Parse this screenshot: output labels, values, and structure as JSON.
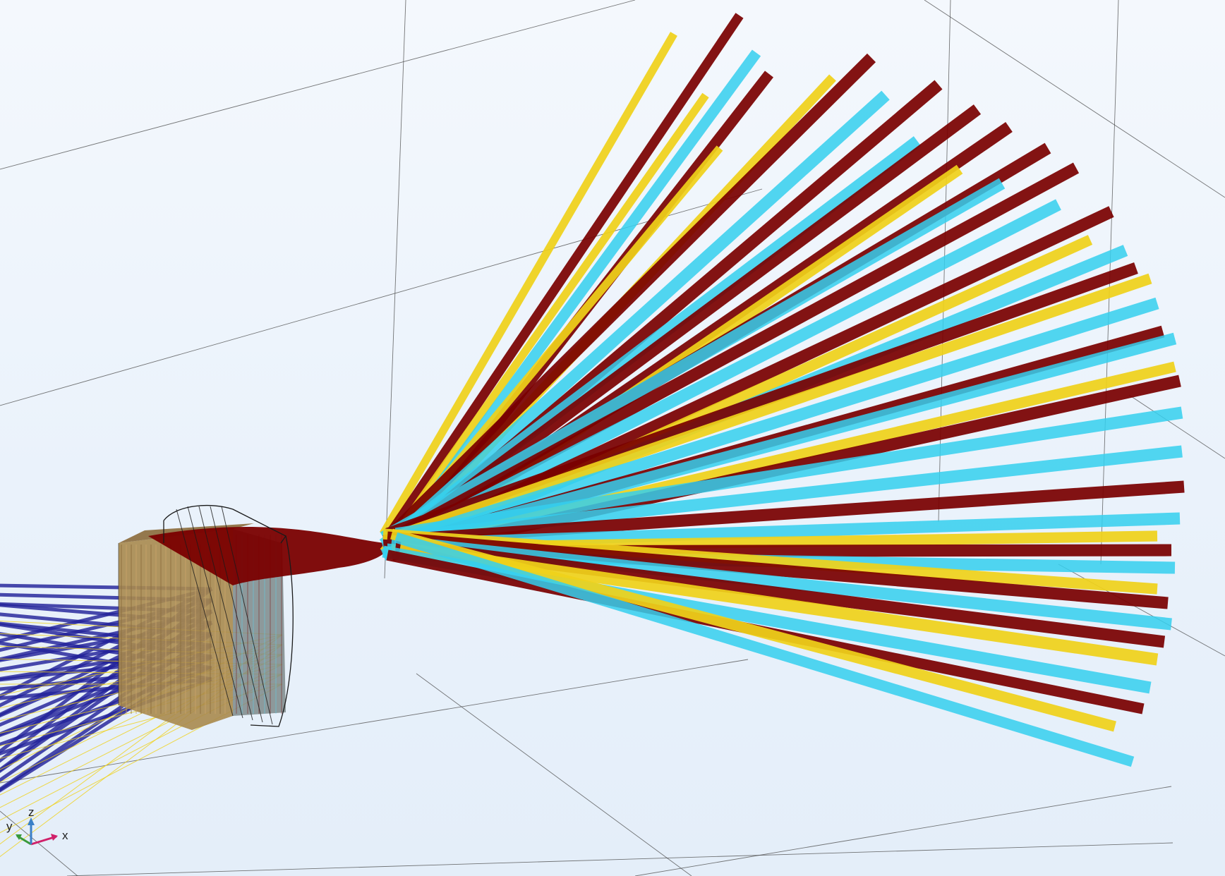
{
  "view": {
    "background_top": "#f4f8fd",
    "background_bottom": "#e4eef9",
    "grid_color": "#4a4a4a"
  },
  "axis_triad": {
    "x_label": "x",
    "y_label": "y",
    "z_label": "z",
    "x_color": "#d0206a",
    "y_color": "#3a9a3a",
    "z_color": "#3a7fc8"
  },
  "rays": {
    "colors": {
      "incoming": "#23239a",
      "dark_red": "#7a0000",
      "cyan": "#35d0ef",
      "yellow": "#f0d21a"
    }
  },
  "lens": {
    "block_color": "#a88a4e",
    "outline_color": "#1a1a1a"
  }
}
